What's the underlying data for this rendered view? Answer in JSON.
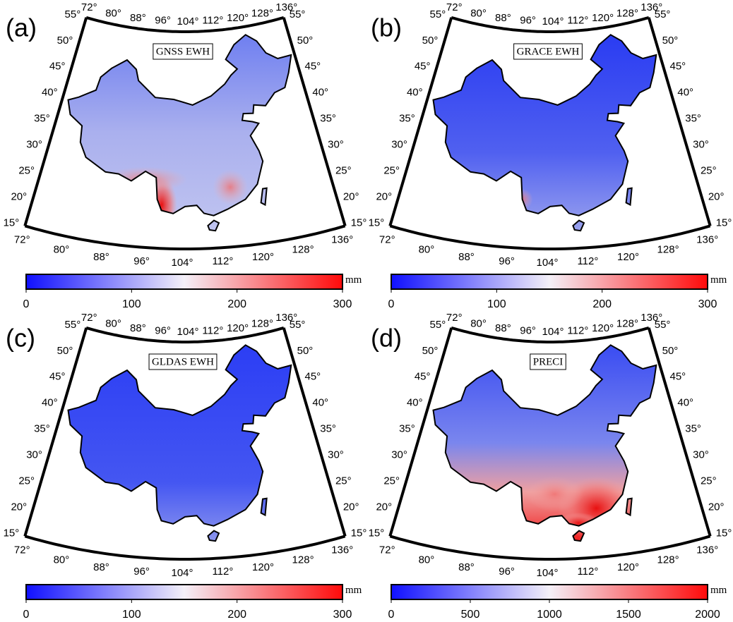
{
  "panels": [
    {
      "label": "(a)",
      "title": "GNSS EWH",
      "colorbar": {
        "range": [
          0,
          300
        ],
        "ticks": [
          0,
          100,
          200,
          300
        ],
        "unit": "mm"
      }
    },
    {
      "label": "(b)",
      "title": "GRACE EWH",
      "colorbar": {
        "range": [
          0,
          300
        ],
        "ticks": [
          0,
          100,
          200,
          300
        ],
        "unit": "mm"
      }
    },
    {
      "label": "(c)",
      "title": "GLDAS EWH",
      "colorbar": {
        "range": [
          0,
          300
        ],
        "ticks": [
          0,
          100,
          200,
          300
        ],
        "unit": "mm"
      }
    },
    {
      "label": "(d)",
      "title": "PRECI",
      "colorbar": {
        "range": [
          0,
          2000
        ],
        "ticks": [
          0,
          500,
          1000,
          1500,
          2000
        ],
        "unit": "mm"
      }
    }
  ],
  "map": {
    "lon_labels": [
      "72°",
      "80°",
      "88°",
      "96°",
      "104°",
      "112°",
      "120°",
      "128°",
      "136°"
    ],
    "lat_labels": [
      "15°",
      "20°",
      "25°",
      "30°",
      "35°",
      "40°",
      "45°",
      "50°",
      "55°"
    ]
  }
}
